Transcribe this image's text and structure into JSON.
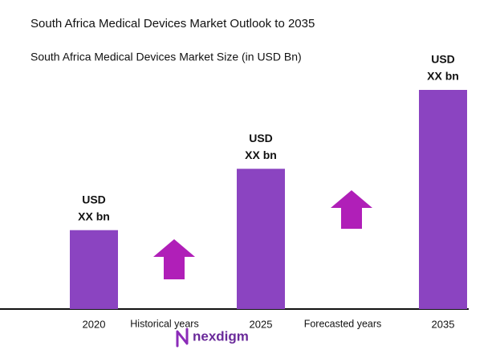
{
  "chart_data": {
    "type": "bar",
    "title": "South Africa Medical Devices Market Outlook to 2035",
    "subtitle": "South Africa Medical Devices Market Size (in USD Bn)",
    "categories": [
      "2020",
      "2025",
      "2035"
    ],
    "values": [
      36,
      64,
      100
    ],
    "value_labels": [
      [
        "USD",
        "XX bn"
      ],
      [
        "USD",
        "XX bn"
      ],
      [
        "USD",
        "XX bn"
      ]
    ],
    "color": "#8b44c1",
    "annotations": [
      "Historical years",
      "Forecasted years"
    ],
    "logo": "nexdigm"
  }
}
